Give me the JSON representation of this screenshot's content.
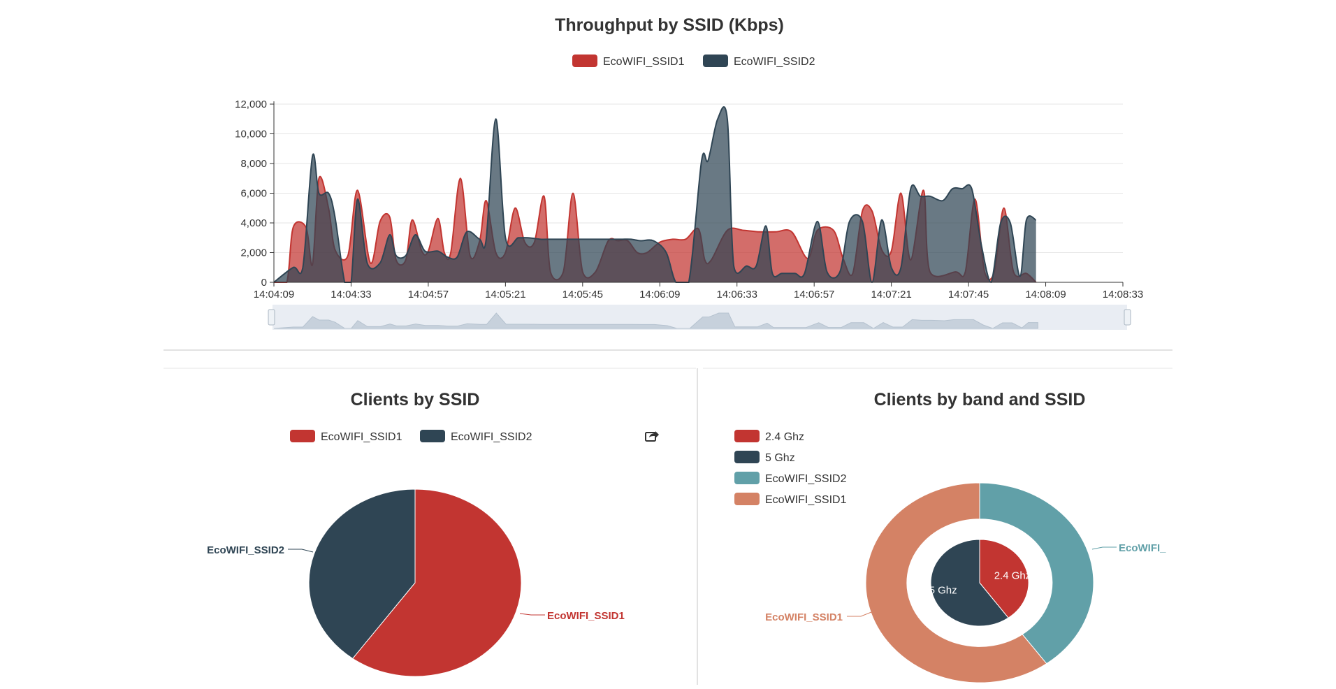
{
  "colors": {
    "ssid1": "#c23531",
    "ssid2": "#2f4554",
    "teal": "#61a0a8",
    "salmon": "#d48265",
    "grid": "#e6e6e6",
    "axis": "#333333",
    "zoom_fill": "#dfe6ee"
  },
  "icons": {
    "export": "share-icon"
  },
  "chart_data": [
    {
      "type": "area",
      "title": "Throughput by SSID (Kbps)",
      "legend_position": "top-center",
      "ylim": [
        0,
        12000
      ],
      "yticks": [
        "0",
        "2,000",
        "4,000",
        "6,000",
        "8,000",
        "10,000",
        "12,000"
      ],
      "xticks": [
        "14:04:09",
        "14:04:33",
        "14:04:57",
        "14:05:21",
        "14:05:45",
        "14:06:09",
        "14:06:33",
        "14:06:57",
        "14:07:21",
        "14:07:45",
        "14:08:09",
        "14:08:33"
      ],
      "xrange_seconds": [
        0,
        264
      ],
      "grid": true,
      "data_zoom_slider": true,
      "series": [
        {
          "name": "EcoWIFI_SSID1",
          "points": [
            [
              0,
              0
            ],
            [
              4,
              0
            ],
            [
              6,
              3700
            ],
            [
              10,
              3700
            ],
            [
              12,
              1200
            ],
            [
              14,
              7000
            ],
            [
              17,
              5000
            ],
            [
              19,
              2200
            ],
            [
              23,
              1800
            ],
            [
              26,
              6200
            ],
            [
              30,
              1300
            ],
            [
              33,
              4100
            ],
            [
              36,
              4400
            ],
            [
              38,
              1500
            ],
            [
              41,
              1500
            ],
            [
              43,
              4200
            ],
            [
              46,
              2100
            ],
            [
              48,
              2100
            ],
            [
              51,
              4300
            ],
            [
              53,
              2000
            ],
            [
              55,
              2000
            ],
            [
              58,
              7000
            ],
            [
              61,
              1800
            ],
            [
              64,
              2800
            ],
            [
              66,
              5500
            ],
            [
              69,
              2000
            ],
            [
              72,
              2000
            ],
            [
              75,
              5000
            ],
            [
              78,
              2700
            ],
            [
              81,
              2700
            ],
            [
              84,
              5800
            ],
            [
              86,
              700
            ],
            [
              90,
              700
            ],
            [
              93,
              6000
            ],
            [
              96,
              700
            ],
            [
              100,
              700
            ],
            [
              104,
              2800
            ],
            [
              107,
              2800
            ],
            [
              110,
              2800
            ],
            [
              113,
              2000
            ],
            [
              116,
              2000
            ],
            [
              120,
              2700
            ],
            [
              124,
              2900
            ],
            [
              128,
              2900
            ],
            [
              132,
              3600
            ],
            [
              134,
              1500
            ],
            [
              136,
              1500
            ],
            [
              141,
              3500
            ],
            [
              146,
              3500
            ],
            [
              151,
              3400
            ],
            [
              156,
              3400
            ],
            [
              161,
              3400
            ],
            [
              166,
              1600
            ],
            [
              169,
              3500
            ],
            [
              174,
              3500
            ],
            [
              177,
              1600
            ],
            [
              180,
              600
            ],
            [
              183,
              4800
            ],
            [
              186,
              4800
            ],
            [
              189,
              2200
            ],
            [
              192,
              2100
            ],
            [
              195,
              6000
            ],
            [
              198,
              1500
            ],
            [
              202,
              6200
            ],
            [
              204,
              700
            ],
            [
              212,
              700
            ],
            [
              215,
              700
            ],
            [
              218,
              5600
            ],
            [
              221,
              700
            ],
            [
              224,
              700
            ],
            [
              227,
              5000
            ],
            [
              230,
              700
            ],
            [
              234,
              600
            ],
            [
              237,
              0
            ]
          ]
        },
        {
          "name": "EcoWIFI_SSID2",
          "points": [
            [
              0,
              0
            ],
            [
              6,
              1000
            ],
            [
              9,
              1000
            ],
            [
              12,
              8500
            ],
            [
              14,
              6000
            ],
            [
              17,
              6000
            ],
            [
              19,
              4400
            ],
            [
              22,
              0
            ],
            [
              24,
              0
            ],
            [
              26,
              5600
            ],
            [
              29,
              1300
            ],
            [
              33,
              1300
            ],
            [
              36,
              3200
            ],
            [
              38,
              1800
            ],
            [
              41,
              1800
            ],
            [
              44,
              3200
            ],
            [
              47,
              2100
            ],
            [
              51,
              2100
            ],
            [
              54,
              1700
            ],
            [
              57,
              1700
            ],
            [
              60,
              3400
            ],
            [
              64,
              2900
            ],
            [
              66,
              2900
            ],
            [
              69,
              11000
            ],
            [
              72,
              3000
            ],
            [
              76,
              3000
            ],
            [
              79,
              3000
            ],
            [
              83,
              2900
            ],
            [
              85,
              2900
            ],
            [
              91,
              2900
            ],
            [
              94,
              2900
            ],
            [
              98,
              2900
            ],
            [
              101,
              2900
            ],
            [
              104,
              2900
            ],
            [
              108,
              2900
            ],
            [
              111,
              2900
            ],
            [
              114,
              2800
            ],
            [
              118,
              2800
            ],
            [
              122,
              2000
            ],
            [
              125,
              0
            ],
            [
              129,
              0
            ],
            [
              133,
              8200
            ],
            [
              135,
              8200
            ],
            [
              138,
              11000
            ],
            [
              141,
              11000
            ],
            [
              143,
              1100
            ],
            [
              147,
              1100
            ],
            [
              150,
              1100
            ],
            [
              153,
              3800
            ],
            [
              155,
              600
            ],
            [
              158,
              600
            ],
            [
              162,
              600
            ],
            [
              165,
              600
            ],
            [
              169,
              4100
            ],
            [
              172,
              700
            ],
            [
              176,
              700
            ],
            [
              179,
              4100
            ],
            [
              183,
              4100
            ],
            [
              186,
              0
            ],
            [
              189,
              4200
            ],
            [
              192,
              1000
            ],
            [
              195,
              1000
            ],
            [
              198,
              6300
            ],
            [
              201,
              5800
            ],
            [
              204,
              5800
            ],
            [
              208,
              5500
            ],
            [
              211,
              6300
            ],
            [
              214,
              6300
            ],
            [
              217,
              6300
            ],
            [
              220,
              2500
            ],
            [
              223,
              0
            ],
            [
              226,
              4000
            ],
            [
              229,
              4000
            ],
            [
              232,
              400
            ],
            [
              234,
              4200
            ],
            [
              237,
              4200
            ]
          ]
        }
      ]
    },
    {
      "type": "pie",
      "title": "Clients by SSID",
      "legend_position": "top-center",
      "slices": [
        {
          "name": "EcoWIFI_SSID1",
          "value": 60
        },
        {
          "name": "EcoWIFI_SSID2",
          "value": 40
        }
      ]
    },
    {
      "type": "pie",
      "title": "Clients by band and SSID",
      "legend_position": "top-left",
      "inner": [
        {
          "name": "2.4 Ghz",
          "value": 40
        },
        {
          "name": "5 Ghz",
          "value": 60
        }
      ],
      "outer": [
        {
          "name": "EcoWIFI_SSID2",
          "value": 40
        },
        {
          "name": "EcoWIFI_SSID1",
          "value": 60
        }
      ],
      "legend": [
        "2.4 Ghz",
        "5 Ghz",
        "EcoWIFI_SSID2",
        "EcoWIFI_SSID1"
      ],
      "outer_labels": [
        "EcoWIFI_",
        "EcoWIFI_SSID1"
      ]
    }
  ]
}
